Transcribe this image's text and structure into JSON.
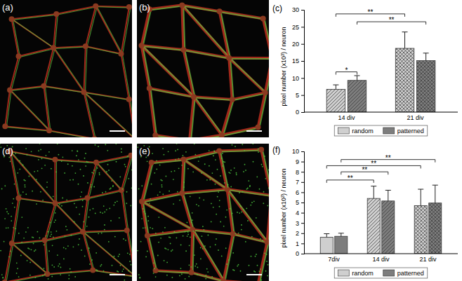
{
  "panels": [
    {
      "label": "(a)"
    },
    {
      "label": "(b)"
    },
    {
      "label": "(d)"
    },
    {
      "label": "(e)"
    }
  ],
  "chart_data": [
    {
      "type": "bar",
      "title": "(c)",
      "y_label": "pixel number (x10³) / neuron",
      "categories": [
        "14 div",
        "21 div"
      ],
      "series": [
        {
          "name": "random",
          "color": "#cfcfcf",
          "values": [
            6.7,
            18.7
          ],
          "errors": [
            1.3,
            4.8
          ]
        },
        {
          "name": "patterned",
          "color": "#7d7d7d",
          "values": [
            9.3,
            15.1
          ],
          "errors": [
            1.4,
            2.2
          ]
        }
      ],
      "ylim": [
        0,
        30
      ],
      "yticks": [
        0,
        5,
        10,
        15,
        20,
        25,
        30
      ],
      "legend": "bottom",
      "annotations": [
        {
          "text": "*",
          "y": 11.8,
          "from": {
            "category": "14 div",
            "series": "random"
          },
          "to": {
            "category": "14 div",
            "series": "patterned"
          }
        },
        {
          "text": "**",
          "y": 28.8,
          "from": {
            "category": "14 div",
            "series": "random"
          },
          "to": {
            "category": "21 div",
            "series": "random"
          }
        },
        {
          "text": "**",
          "y": 26.5,
          "from": {
            "category": "14 div",
            "series": "patterned"
          },
          "to": {
            "category": "21 div",
            "series": "patterned"
          }
        }
      ]
    },
    {
      "type": "bar",
      "title": "(f)",
      "y_label": "pixel number (x10³) / neuron",
      "categories": [
        "7div",
        "14 div",
        "21 div"
      ],
      "series": [
        {
          "name": "random",
          "color": "#cfcfcf",
          "values": [
            1.6,
            5.4,
            4.7
          ],
          "errors": [
            0.35,
            1.2,
            1.6
          ]
        },
        {
          "name": "patterned",
          "color": "#7d7d7d",
          "values": [
            1.7,
            5.15,
            4.95
          ],
          "errors": [
            0.3,
            1.05,
            1.75
          ]
        }
      ],
      "ylim": [
        0,
        10
      ],
      "yticks": [
        0,
        1,
        2,
        3,
        4,
        5,
        6,
        7,
        8,
        9,
        10
      ],
      "legend": "bottom",
      "annotations": [
        {
          "text": "**",
          "y": 9.2,
          "from": {
            "category": "7div",
            "series": "patterned"
          },
          "to": {
            "category": "21 div",
            "series": "patterned"
          }
        },
        {
          "text": "**",
          "y": 8.6,
          "from": {
            "category": "7div",
            "series": "random"
          },
          "to": {
            "category": "21 div",
            "series": "random"
          }
        },
        {
          "text": "**",
          "y": 8.0,
          "from": {
            "category": "7div",
            "series": "patterned"
          },
          "to": {
            "category": "14 div",
            "series": "patterned"
          }
        },
        {
          "text": "**",
          "y": 7.2,
          "from": {
            "category": "7div",
            "series": "random"
          },
          "to": {
            "category": "14 div",
            "series": "random"
          }
        }
      ]
    }
  ]
}
